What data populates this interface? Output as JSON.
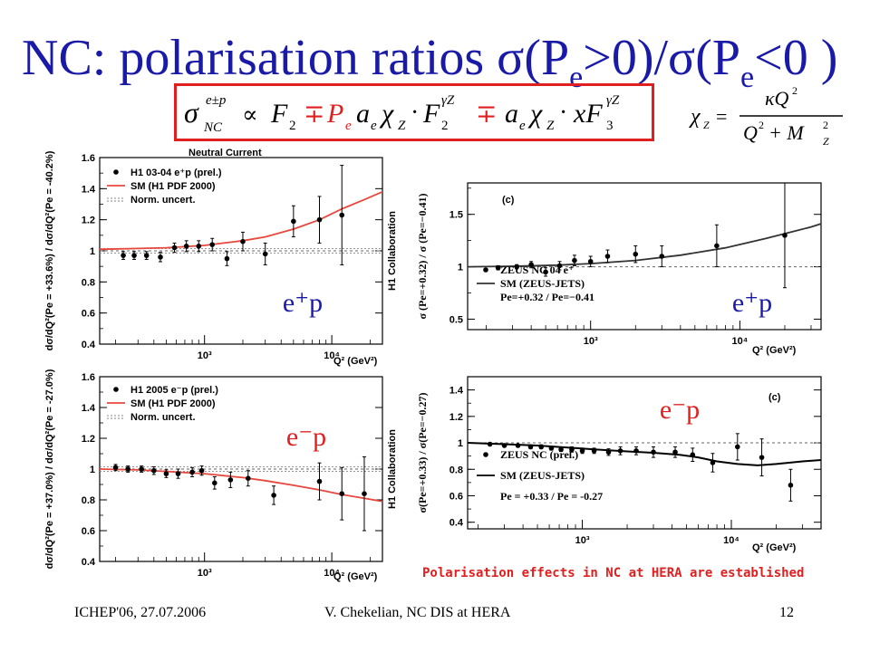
{
  "title": {
    "prefix": "NC: polarisation ratios ",
    "sigma1": "σ",
    "open1": "(P",
    "sub1": "e",
    "mid": ">0)/",
    "sigma2": "σ",
    "open2": "(P",
    "sub2": "e",
    "close": "<0 )"
  },
  "formula": {
    "sigma": "σ",
    "sup": "e±p",
    "sub": "NC",
    "rel": "∝",
    "t1": "F",
    "t1_sub": "2",
    "mp1": "∓",
    "t2_P": "P",
    "t2_Psub": "e",
    "t2_a": "a",
    "t2_asub": "e",
    "t2_chi": "χ",
    "t2_chisub": "Z",
    "dot": "·",
    "t2_F": "F",
    "t2_Fsub": "2",
    "t2_Fsup": "γZ",
    "mp2": "∓",
    "t3_a": "a",
    "t3_asub": "e",
    "t3_chi": "χ",
    "t3_chisub": "Z",
    "t3_xF": "xF",
    "t3_Fsub": "3",
    "t3_Fsup": "γZ"
  },
  "chi_formula": {
    "chi": "χ",
    "chi_sub": "Z",
    "eq": "=",
    "num": "κQ",
    "num_sup": "2",
    "den_q": "Q",
    "den_q_sup": "2",
    "den_plus": " + M",
    "den_m_sub": "Z",
    "den_m_sup": "2"
  },
  "chart_data": [
    {
      "id": "h1-eplus",
      "type": "scatter",
      "title": "Neutral Current",
      "ylabel": "dσ/dQ²(Pe = +33.6%) / dσ/dQ²(Pe = -40.2%)",
      "xlabel": "Q² (GeV²)",
      "side_label": "H1 Collaboration",
      "big_label": "e⁺p",
      "xscale": "log",
      "xlim": [
        150,
        25000
      ],
      "ylim": [
        0.4,
        1.6
      ],
      "yticks": [
        0.4,
        0.6,
        0.8,
        1.0,
        1.2,
        1.4,
        1.6
      ],
      "ytick_labels": [
        "0.4",
        "0.6",
        "0.8",
        "1",
        "1.2",
        "1.4",
        "1.6"
      ],
      "xticks": [
        1000,
        10000
      ],
      "xtick_labels": [
        "10³",
        "10⁴"
      ],
      "legend": [
        {
          "marker": "point",
          "label": "H1 03-04 e⁺p (prel.)"
        },
        {
          "marker": "line",
          "color": "#e8473c",
          "label": "SM (H1 PDF 2000)"
        },
        {
          "marker": "dashed",
          "color": "#888888",
          "label": "Norm. uncert."
        }
      ],
      "norm_band": [
        0.985,
        1.015
      ],
      "points": {
        "x": [
          230,
          280,
          350,
          450,
          580,
          720,
          900,
          1150,
          1500,
          2000,
          3000,
          5000,
          8000,
          12000
        ],
        "y": [
          0.97,
          0.97,
          0.97,
          0.96,
          1.02,
          1.03,
          1.03,
          1.04,
          0.95,
          1.06,
          0.98,
          1.19,
          1.2,
          1.23
        ],
        "err": [
          0.025,
          0.025,
          0.025,
          0.03,
          0.03,
          0.035,
          0.035,
          0.04,
          0.045,
          0.06,
          0.07,
          0.1,
          0.15,
          0.32
        ]
      },
      "curve": {
        "color": "#e8473c",
        "x": [
          150,
          300,
          500,
          1000,
          2000,
          3000,
          5000,
          8000,
          12000,
          18000,
          25000
        ],
        "y": [
          1.01,
          1.015,
          1.02,
          1.035,
          1.065,
          1.09,
          1.14,
          1.2,
          1.27,
          1.33,
          1.38
        ]
      }
    },
    {
      "id": "h1-eminus",
      "type": "scatter",
      "title": "",
      "ylabel": "dσ/dQ²(Pe = +37.0%) / dσ/dQ²(Pe = -27.0%)",
      "xlabel": "Q² (GeV²)",
      "side_label": "H1 Collaboration",
      "big_label": "e⁻p",
      "xscale": "log",
      "xlim": [
        150,
        25000
      ],
      "ylim": [
        0.4,
        1.6
      ],
      "yticks": [
        0.4,
        0.6,
        0.8,
        1.0,
        1.2,
        1.4,
        1.6
      ],
      "ytick_labels": [
        "0.4",
        "0.6",
        "0.8",
        "1",
        "1.2",
        "1.4",
        "1.6"
      ],
      "xticks": [
        1000,
        10000
      ],
      "xtick_labels": [
        "10³",
        "10⁴"
      ],
      "legend": [
        {
          "marker": "point",
          "label": "H1 2005 e⁻p (prel.)"
        },
        {
          "marker": "line",
          "color": "#e8473c",
          "label": "SM (H1 PDF 2000)"
        },
        {
          "marker": "dashed",
          "color": "#888888",
          "label": "Norm. uncert."
        }
      ],
      "norm_band": [
        0.985,
        1.015
      ],
      "points": {
        "x": [
          200,
          250,
          320,
          400,
          500,
          620,
          800,
          950,
          1200,
          1600,
          2200,
          3500,
          8000,
          12000,
          18000
        ],
        "y": [
          1.01,
          1.0,
          1.0,
          0.99,
          0.97,
          0.97,
          0.98,
          0.99,
          0.91,
          0.93,
          0.94,
          0.83,
          0.92,
          0.84,
          0.84
        ],
        "err": [
          0.02,
          0.02,
          0.02,
          0.025,
          0.025,
          0.03,
          0.03,
          0.03,
          0.04,
          0.05,
          0.05,
          0.06,
          0.12,
          0.17,
          0.24
        ]
      },
      "curve": {
        "color": "#e8473c",
        "x": [
          150,
          300,
          500,
          1000,
          2000,
          3000,
          5000,
          8000,
          12000,
          18000,
          25000
        ],
        "y": [
          1.0,
          0.995,
          0.985,
          0.97,
          0.945,
          0.925,
          0.895,
          0.865,
          0.835,
          0.81,
          0.79
        ]
      }
    },
    {
      "id": "zeus-eplus",
      "type": "scatter",
      "title": "(c)",
      "ylabel": "σ (Pe=+0.32) / σ (Pe=−0.41)",
      "xlabel": "Q² (GeV²)",
      "big_label": "e⁺p",
      "xscale": "log",
      "xlim": [
        150,
        35000
      ],
      "ylim": [
        0.4,
        1.8
      ],
      "yticks": [
        0.5,
        1.0,
        1.5
      ],
      "ytick_labels": [
        "0.5",
        "1",
        "1.5"
      ],
      "xticks": [
        1000,
        10000
      ],
      "xtick_labels": [
        "10³",
        "10⁴"
      ],
      "legend": [
        {
          "marker": "point",
          "label": "ZEUS NC 04 e⁺"
        },
        {
          "marker": "line",
          "color": "#333333",
          "label": "SM (ZEUS-JETS)"
        },
        {
          "marker": "none",
          "label": "Pe=+0.32 / Pe=−0.41"
        }
      ],
      "points": {
        "x": [
          240,
          320,
          400,
          500,
          620,
          780,
          1000,
          1300,
          2000,
          3000,
          7000,
          20000
        ],
        "y": [
          0.99,
          1.0,
          1.02,
          0.95,
          1.01,
          1.06,
          1.05,
          1.1,
          1.12,
          1.1,
          1.2,
          1.3
        ],
        "err": [
          0.02,
          0.02,
          0.03,
          0.04,
          0.04,
          0.05,
          0.05,
          0.06,
          0.08,
          0.1,
          0.2,
          0.5
        ]
      },
      "curve": {
        "color": "#333333",
        "x": [
          150,
          300,
          600,
          1000,
          2000,
          4000,
          8000,
          15000,
          30000,
          35000
        ],
        "y": [
          1.0,
          1.005,
          1.015,
          1.03,
          1.06,
          1.11,
          1.18,
          1.27,
          1.38,
          1.41
        ]
      }
    },
    {
      "id": "zeus-eminus",
      "type": "scatter",
      "title": "(c)",
      "ylabel": "σ(Pe=+0.33) / σ(Pe=−0.27)",
      "xlabel": "Q² (GeV²)",
      "big_label": "e⁻p",
      "xscale": "log",
      "xlim": [
        170,
        40000
      ],
      "ylim": [
        0.35,
        1.5
      ],
      "yticks": [
        0.4,
        0.6,
        0.8,
        1.0,
        1.2,
        1.4
      ],
      "ytick_labels": [
        "0.4",
        "0.6",
        "0.8",
        "1",
        "1.2",
        "1.4"
      ],
      "xticks": [
        1000,
        10000
      ],
      "xtick_labels": [
        "10³",
        "10⁴"
      ],
      "legend": [
        {
          "marker": "point",
          "label": "ZEUS NC (prel.)"
        },
        {
          "marker": "line",
          "color": "#000000",
          "label": "SM (ZEUS-JETS)"
        },
        {
          "marker": "none",
          "label": "Pe = +0.33 / Pe = -0.27"
        }
      ],
      "points": {
        "x": [
          240,
          300,
          370,
          450,
          530,
          620,
          720,
          850,
          1000,
          1200,
          1500,
          1800,
          2300,
          3000,
          4200,
          5500,
          7500,
          11000,
          16000,
          25000
        ],
        "y": [
          0.99,
          0.98,
          0.98,
          0.97,
          0.97,
          0.96,
          0.95,
          0.95,
          0.94,
          0.94,
          0.93,
          0.94,
          0.94,
          0.93,
          0.93,
          0.91,
          0.85,
          0.97,
          0.89,
          0.68
        ],
        "err": [
          0.01,
          0.01,
          0.01,
          0.015,
          0.015,
          0.015,
          0.015,
          0.02,
          0.02,
          0.02,
          0.025,
          0.03,
          0.03,
          0.04,
          0.04,
          0.05,
          0.07,
          0.1,
          0.14,
          0.12
        ]
      },
      "curve": {
        "color": "#000000",
        "x": [
          170,
          300,
          500,
          800,
          1200,
          2000,
          3000,
          4500,
          6000,
          8000,
          11000,
          15000,
          20000,
          30000,
          40000
        ],
        "y": [
          1.0,
          0.99,
          0.98,
          0.965,
          0.95,
          0.935,
          0.925,
          0.91,
          0.89,
          0.86,
          0.84,
          0.83,
          0.84,
          0.86,
          0.87
        ]
      }
    }
  ],
  "conclusion": "Polarisation effects in NC at HERA are established",
  "footer": {
    "left": "ICHEP'06, 27.07.2006",
    "center": "V. Chekelian,  NC DIS at HERA",
    "page": "12"
  }
}
